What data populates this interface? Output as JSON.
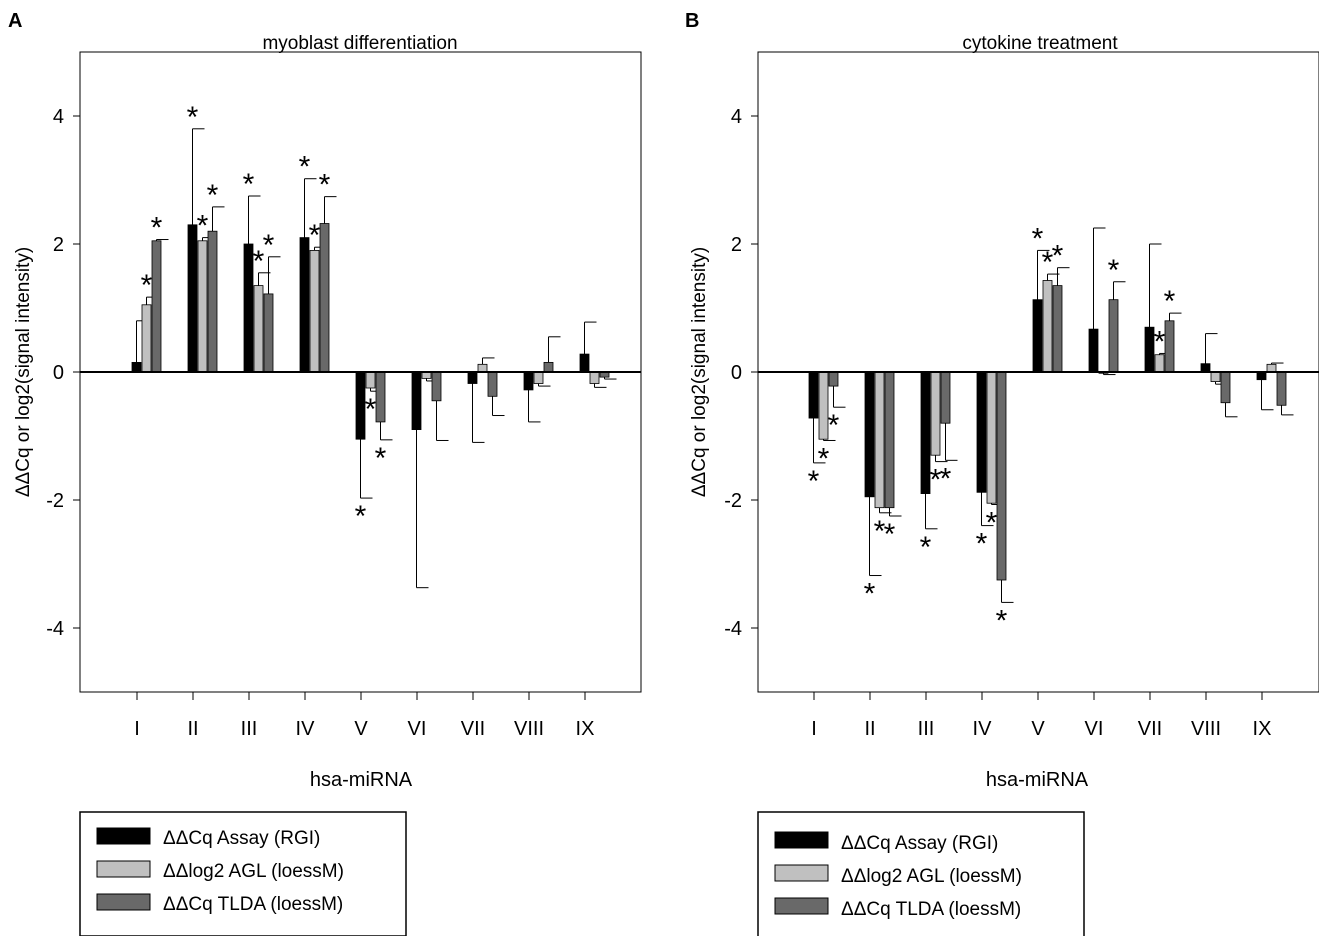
{
  "colors": {
    "assay": "#000000",
    "agl": "#c0c0c0",
    "tlda": "#696969"
  },
  "legend": {
    "items": [
      {
        "key": "assay",
        "label": "ΔΔCq Assay (RGI)"
      },
      {
        "key": "agl",
        "label": "ΔΔlog2 AGL (loessM)"
      },
      {
        "key": "tlda",
        "label": "ΔΔCq TLDA (loessM)"
      }
    ]
  },
  "chart_data": [
    {
      "type": "bar",
      "panel": "A",
      "title": "myoblast differentiation",
      "xlabel": "hsa-miRNA",
      "ylabel": "ΔΔCq or log2(signal intensity)",
      "ylim": [
        -5,
        5
      ],
      "yticks": [
        -4,
        -2,
        0,
        2,
        4
      ],
      "categories": [
        "I",
        "II",
        "III",
        "IV",
        "V",
        "VI",
        "VII",
        "VIII",
        "IX"
      ],
      "series": [
        {
          "name": "ΔΔCq Assay (RGI)",
          "key": "assay",
          "values": [
            0.15,
            2.3,
            2.0,
            2.1,
            -1.05,
            -0.9,
            -0.18,
            -0.28,
            0.28
          ],
          "errors": [
            0.65,
            1.5,
            0.75,
            0.92,
            0.92,
            2.47,
            0.92,
            0.5,
            0.5
          ],
          "significant": [
            false,
            true,
            true,
            true,
            true,
            false,
            false,
            false,
            false
          ]
        },
        {
          "name": "ΔΔlog2 AGL (loessM)",
          "key": "agl",
          "values": [
            1.05,
            2.05,
            1.35,
            1.9,
            -0.25,
            -0.1,
            0.12,
            -0.18,
            -0.18
          ],
          "errors": [
            0.12,
            0.05,
            0.2,
            0.05,
            0.05,
            0.04,
            0.1,
            0.04,
            0.06
          ],
          "significant": [
            true,
            true,
            true,
            true,
            true,
            false,
            false,
            false,
            false
          ]
        },
        {
          "name": "ΔΔCq TLDA (loessM)",
          "key": "tlda",
          "values": [
            2.05,
            2.2,
            1.22,
            2.32,
            -0.78,
            -0.45,
            -0.38,
            0.15,
            -0.08
          ],
          "errors": [
            0.02,
            0.38,
            0.58,
            0.42,
            0.28,
            0.62,
            0.3,
            0.4,
            0.03
          ],
          "significant": [
            true,
            true,
            true,
            true,
            true,
            false,
            false,
            false,
            false
          ]
        }
      ]
    },
    {
      "type": "bar",
      "panel": "B",
      "title": "cytokine treatment",
      "xlabel": "hsa-miRNA",
      "ylabel": "ΔΔCq or log2(signal intensity)",
      "ylim": [
        -5,
        5
      ],
      "yticks": [
        -4,
        -2,
        0,
        2,
        4
      ],
      "categories": [
        "I",
        "II",
        "III",
        "IV",
        "V",
        "VI",
        "VII",
        "VIII",
        "IX"
      ],
      "series": [
        {
          "name": "ΔΔCq Assay (RGI)",
          "key": "assay",
          "values": [
            -0.72,
            -1.95,
            -1.9,
            -1.88,
            1.13,
            0.67,
            0.7,
            0.13,
            -0.12
          ],
          "errors": [
            0.7,
            1.23,
            0.55,
            0.52,
            0.77,
            1.58,
            1.3,
            0.47,
            0.47
          ],
          "significant": [
            true,
            true,
            true,
            true,
            true,
            false,
            false,
            false,
            false
          ]
        },
        {
          "name": "ΔΔlog2 AGL (loessM)",
          "key": "agl",
          "values": [
            -1.05,
            -2.12,
            -1.3,
            -2.05,
            1.43,
            -0.02,
            0.27,
            -0.15,
            0.12
          ],
          "errors": [
            0.02,
            0.08,
            0.1,
            0.02,
            0.1,
            0.02,
            0.02,
            0.04,
            0.02
          ],
          "significant": [
            true,
            true,
            true,
            true,
            true,
            false,
            true,
            false,
            false
          ]
        },
        {
          "name": "ΔΔCq TLDA (loessM)",
          "key": "tlda",
          "values": [
            -0.22,
            -2.12,
            -0.8,
            -3.25,
            1.35,
            1.13,
            0.8,
            -0.48,
            -0.52
          ],
          "errors": [
            0.33,
            0.13,
            0.58,
            0.35,
            0.28,
            0.28,
            0.12,
            0.22,
            0.15
          ],
          "significant": [
            true,
            true,
            true,
            true,
            true,
            true,
            true,
            false,
            false
          ]
        }
      ]
    }
  ]
}
